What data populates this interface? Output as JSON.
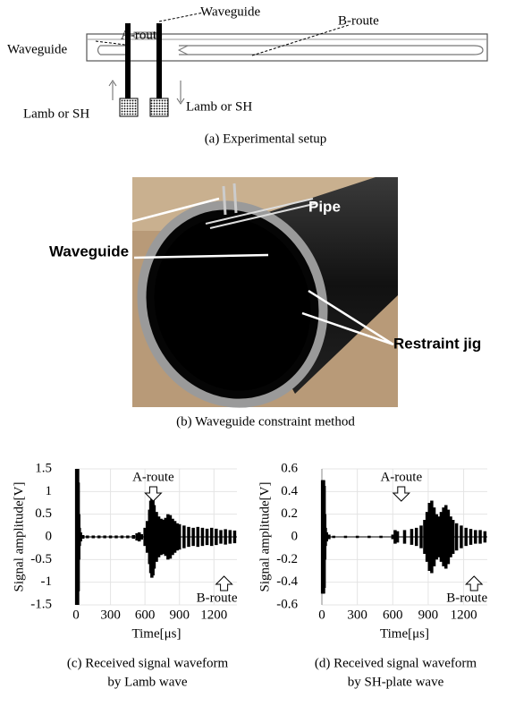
{
  "figure_a": {
    "waveguide_left": "Waveguide",
    "waveguide_top": "Waveguide",
    "a_route": "A-route",
    "b_route": "B-route",
    "lamb_left": "Lamb or SH",
    "lamb_right": "Lamb or SH",
    "caption": "(a) Experimental setup"
  },
  "figure_b": {
    "pipe": "Pipe",
    "waveguide": "Waveguide",
    "restraint_jig": "Restraint jig",
    "caption": "(b) Waveguide constraint method"
  },
  "chart_data": [
    {
      "type": "waveform",
      "ylabel": "Signal amplitude[V]",
      "xlabel": "Time[μs]",
      "caption": [
        "(c) Received signal waveform",
        "by Lamb wave"
      ],
      "annotations": [
        "A-route",
        "B-route"
      ],
      "color": "#000000",
      "grid": true,
      "xlim": [
        0,
        1400
      ],
      "ylim": [
        -1.5,
        1.5
      ],
      "xticks": [
        0,
        300,
        600,
        900,
        1200
      ],
      "yticks": [
        -1.5,
        -1,
        -0.5,
        0,
        0.5,
        1,
        1.5
      ],
      "x": [
        5,
        10,
        15,
        20,
        25,
        30,
        40,
        60,
        100,
        150,
        200,
        250,
        300,
        350,
        400,
        450,
        500,
        530,
        550,
        570,
        600,
        620,
        640,
        650,
        660,
        670,
        680,
        700,
        720,
        740,
        760,
        780,
        800,
        820,
        840,
        860,
        880,
        900,
        940,
        980,
        1020,
        1060,
        1100,
        1140,
        1180,
        1220,
        1260,
        1300,
        1340,
        1380
      ],
      "values": [
        1.5,
        1.5,
        1.5,
        1.2,
        0.5,
        0.2,
        0.1,
        0.04,
        0.03,
        0.03,
        0.03,
        0.03,
        0.03,
        0.03,
        0.03,
        0.03,
        0.04,
        0.08,
        0.1,
        0.06,
        0.2,
        0.35,
        0.6,
        0.8,
        0.9,
        0.85,
        0.7,
        0.55,
        0.45,
        0.4,
        0.38,
        0.42,
        0.5,
        0.48,
        0.4,
        0.35,
        0.3,
        0.28,
        0.25,
        0.22,
        0.2,
        0.22,
        0.2,
        0.18,
        0.2,
        0.18,
        0.15,
        0.17,
        0.15,
        0.14
      ]
    },
    {
      "type": "waveform",
      "ylabel": "Signal amplitude[V]",
      "xlabel": "Time[μs]",
      "caption": [
        "(d) Received signal waveform",
        "by SH-plate wave"
      ],
      "annotations": [
        "A-route",
        "B-route"
      ],
      "color": "#000000",
      "grid": true,
      "xlim": [
        0,
        1400
      ],
      "ylim": [
        -0.6,
        0.6
      ],
      "xticks": [
        0,
        300,
        600,
        900,
        1200
      ],
      "yticks": [
        -0.6,
        -0.4,
        -0.2,
        0,
        0.2,
        0.4,
        0.6
      ],
      "x": [
        5,
        10,
        15,
        20,
        25,
        30,
        40,
        60,
        100,
        200,
        300,
        400,
        500,
        600,
        620,
        640,
        700,
        760,
        800,
        840,
        870,
        890,
        910,
        930,
        950,
        970,
        990,
        1010,
        1030,
        1050,
        1070,
        1090,
        1110,
        1140,
        1180,
        1220,
        1260,
        1300,
        1340,
        1380
      ],
      "values": [
        0.5,
        0.5,
        0.5,
        0.45,
        0.2,
        0.08,
        0.04,
        0.02,
        0.01,
        0.01,
        0.01,
        0.01,
        0.01,
        0.02,
        0.06,
        0.05,
        0.06,
        0.07,
        0.08,
        0.1,
        0.15,
        0.22,
        0.3,
        0.32,
        0.26,
        0.2,
        0.18,
        0.22,
        0.26,
        0.28,
        0.24,
        0.18,
        0.15,
        0.12,
        0.1,
        0.08,
        0.07,
        0.06,
        0.06,
        0.05
      ]
    }
  ]
}
